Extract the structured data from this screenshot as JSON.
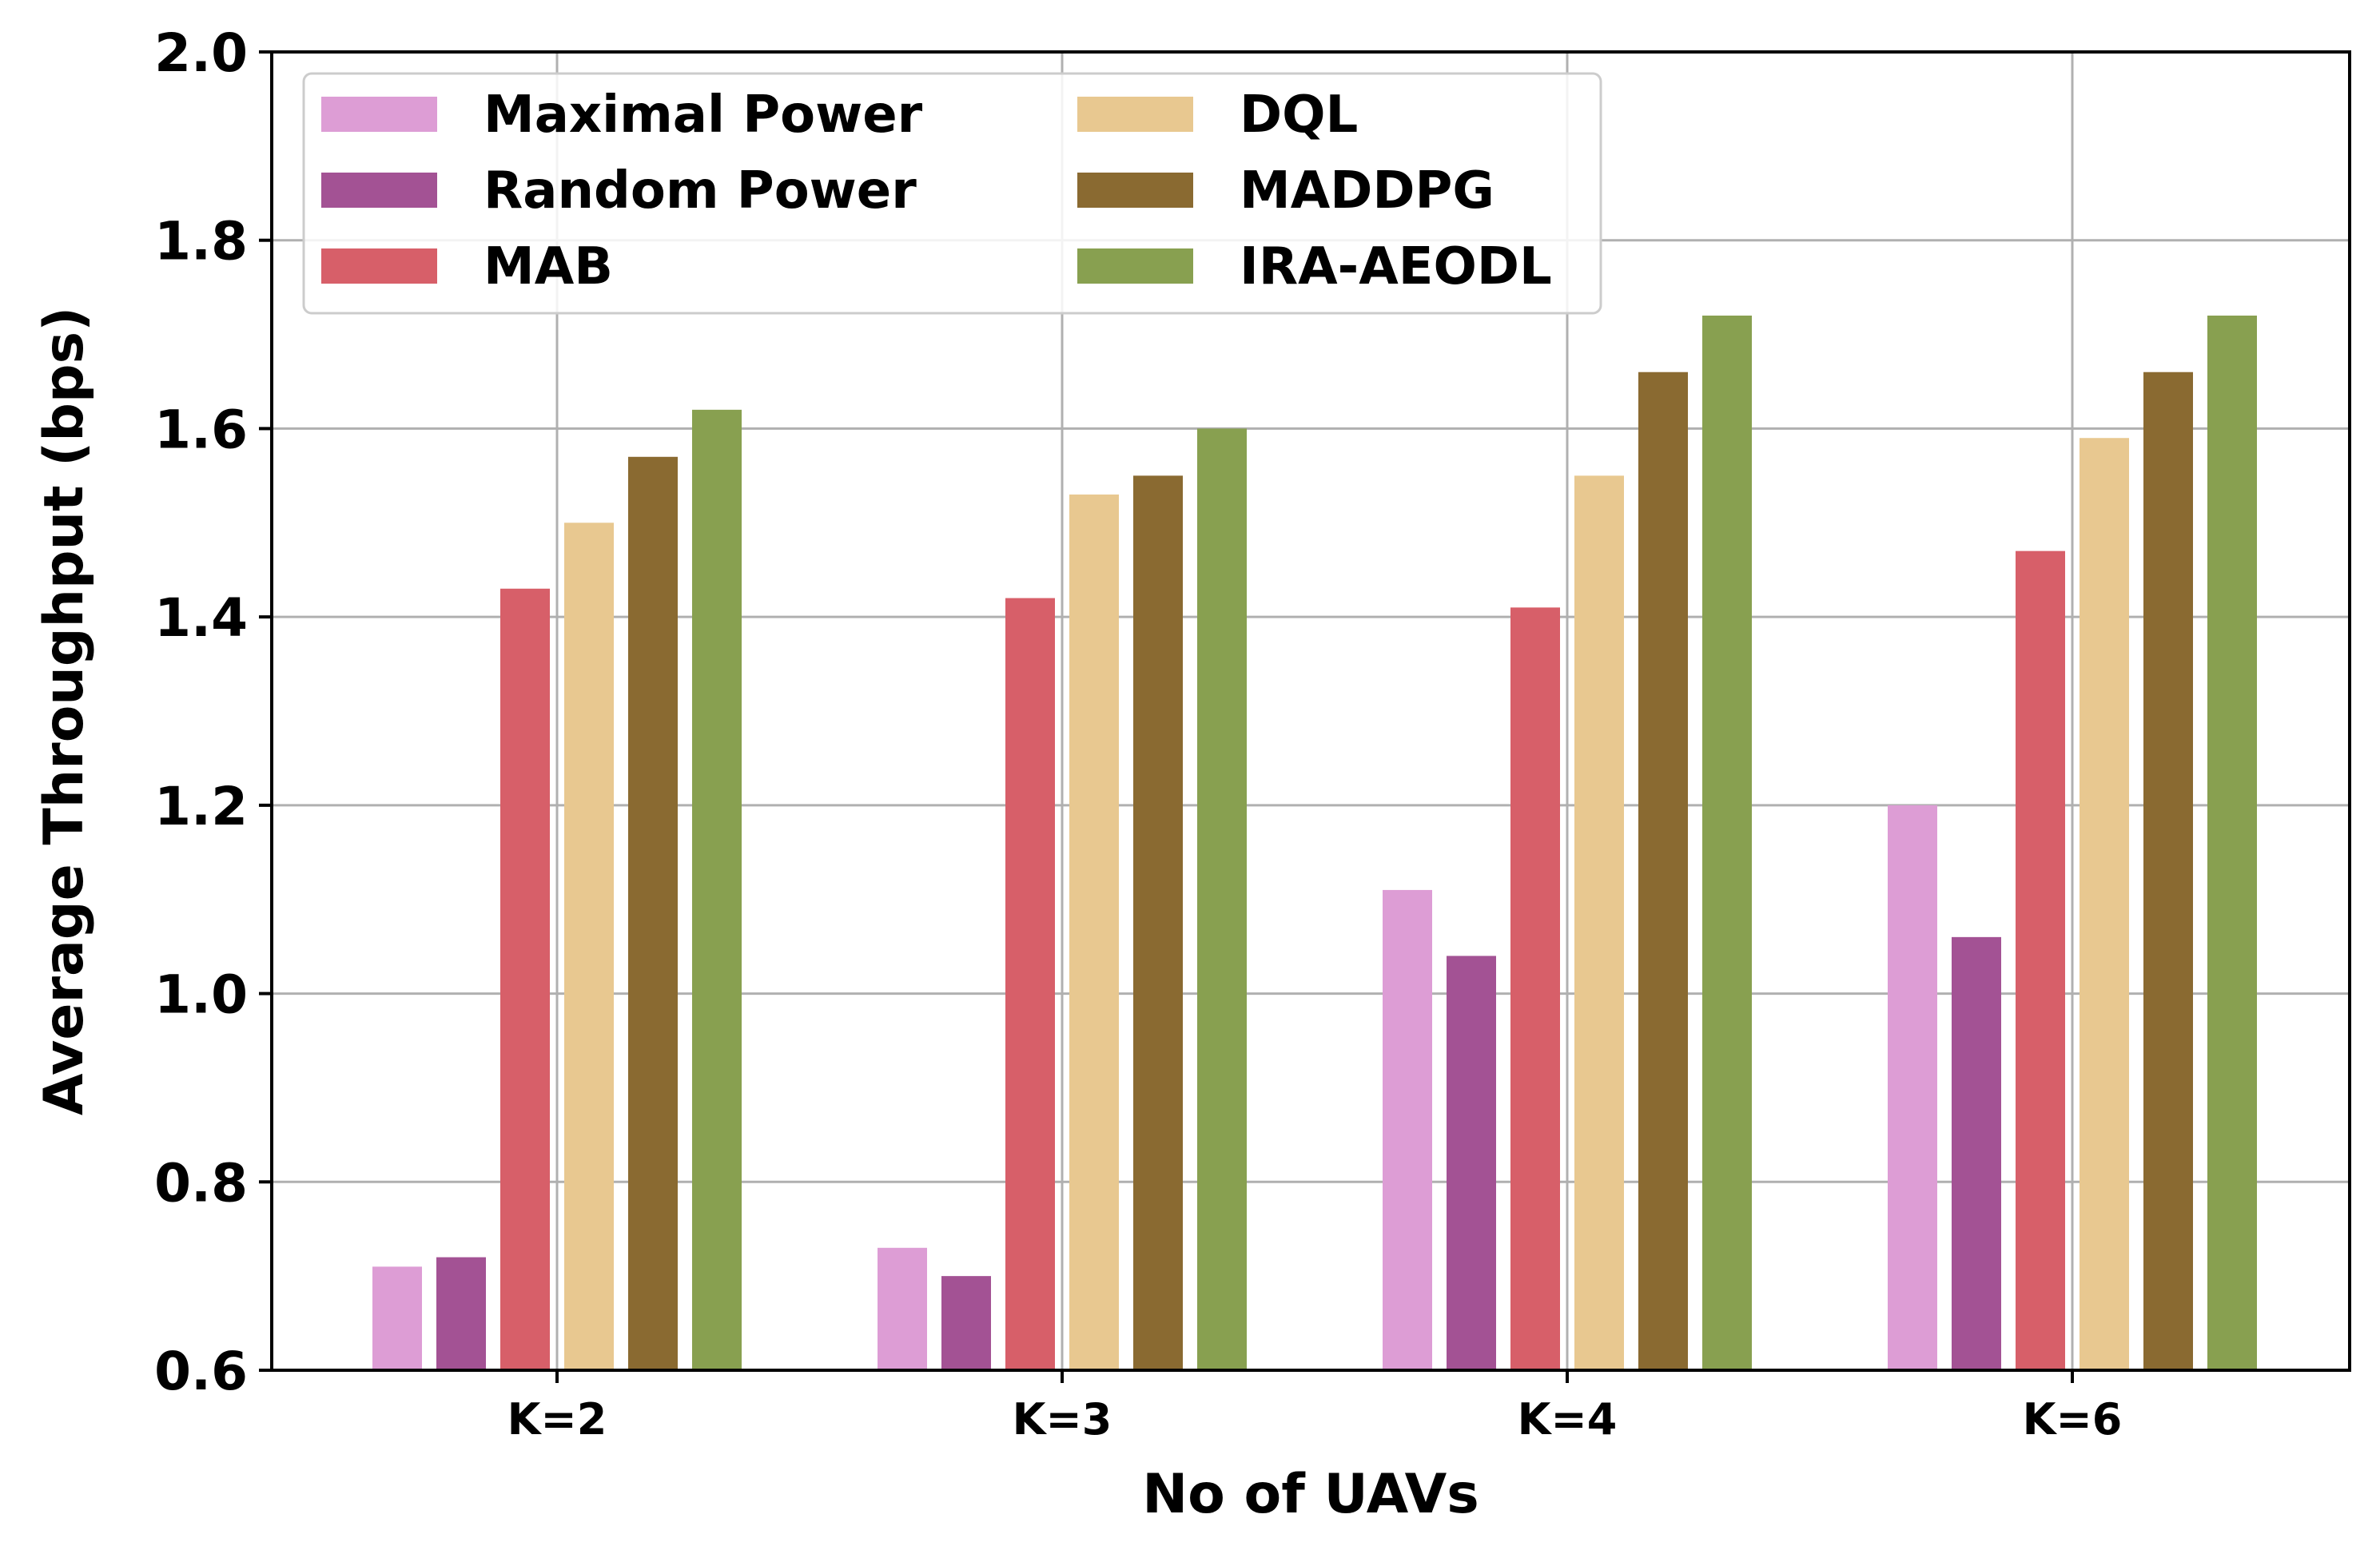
{
  "chart_data": {
    "type": "bar",
    "title": "",
    "xlabel": "No of UAVs",
    "ylabel": "Average Throughput (bps)",
    "categories": [
      "K=2",
      "K=3",
      "K=4",
      "K=6"
    ],
    "ylim": [
      0.6,
      2.0
    ],
    "yticks": [
      "0.6",
      "0.8",
      "1.0",
      "1.2",
      "1.4",
      "1.6",
      "1.8",
      "2.0"
    ],
    "grid": true,
    "legend_position": "top-left",
    "legend_columns": 2,
    "series": [
      {
        "name": "Maximal Power",
        "color": "#dd9dd5",
        "values": [
          0.71,
          0.73,
          1.11,
          1.2
        ]
      },
      {
        "name": "Random Power",
        "color": "#a35294",
        "values": [
          0.72,
          0.7,
          1.04,
          1.06
        ]
      },
      {
        "name": "MAB",
        "color": "#d75f69",
        "values": [
          1.43,
          1.42,
          1.41,
          1.47
        ]
      },
      {
        "name": "DQL",
        "color": "#e8c890",
        "values": [
          1.5,
          1.53,
          1.55,
          1.59
        ]
      },
      {
        "name": "MADDPG",
        "color": "#8a6a31",
        "values": [
          1.57,
          1.55,
          1.66,
          1.66
        ]
      },
      {
        "name": "IRA-AEODL",
        "color": "#88a050",
        "values": [
          1.62,
          1.6,
          1.72,
          1.72
        ]
      }
    ]
  }
}
